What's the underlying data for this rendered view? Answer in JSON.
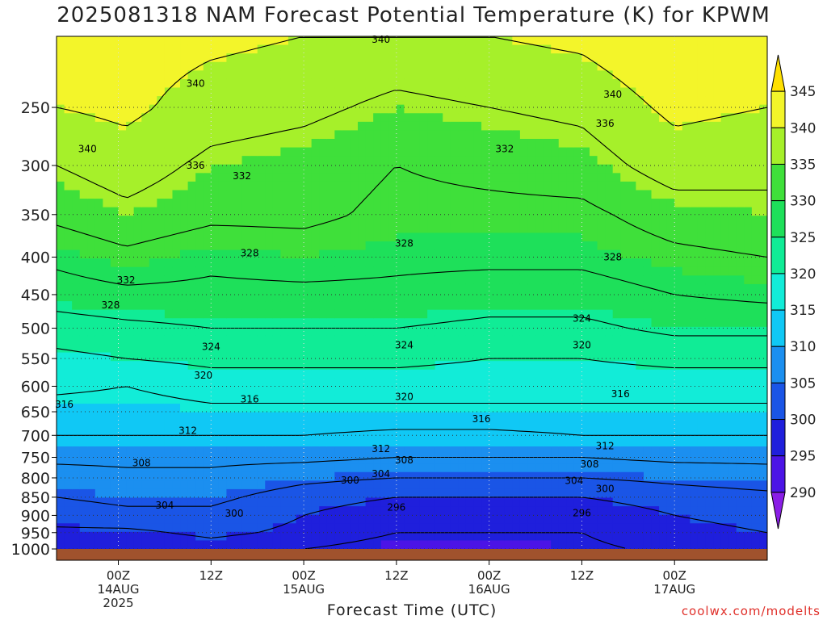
{
  "chart_data": {
    "type": "heatmap",
    "title": "2025081318 NAM Forecast Potential Temperature (K) for KPWM",
    "xlabel": "Forecast Time (UTC)",
    "ylabel": "",
    "y_axis": {
      "scale": "pressure (inverted)",
      "range": [
        1000,
        200
      ],
      "ticks": [
        1000,
        950,
        900,
        850,
        800,
        750,
        700,
        650,
        600,
        550,
        500,
        450,
        400,
        350,
        300,
        250
      ]
    },
    "x_axis": {
      "range_hours": [
        -8,
        84
      ],
      "ticks": [
        {
          "hour": 0,
          "lines": [
            "00Z",
            "14AUG",
            "2025"
          ]
        },
        {
          "hour": 12,
          "lines": [
            "12Z"
          ]
        },
        {
          "hour": 24,
          "lines": [
            "00Z",
            "15AUG"
          ]
        },
        {
          "hour": 36,
          "lines": [
            "12Z"
          ]
        },
        {
          "hour": 48,
          "lines": [
            "00Z",
            "16AUG"
          ]
        },
        {
          "hour": 60,
          "lines": [
            "12Z"
          ]
        },
        {
          "hour": 72,
          "lines": [
            "00Z",
            "17AUG"
          ]
        }
      ]
    },
    "colorbar": {
      "levels": [
        290,
        295,
        300,
        305,
        310,
        315,
        320,
        325,
        330,
        335,
        340,
        345
      ],
      "colors": [
        "#8a1ee6",
        "#4b14e6",
        "#1f1fdc",
        "#1a55e6",
        "#1b8ff0",
        "#10c8f5",
        "#12ecd8",
        "#10ec96",
        "#1ee05a",
        "#3fe03a",
        "#a6f02a",
        "#f3f52a",
        "#ffe000"
      ]
    },
    "contour_levels": [
      296,
      300,
      304,
      308,
      312,
      316,
      320,
      324,
      328,
      332,
      336,
      340
    ],
    "theta_profiles": [
      {
        "hour": -8,
        "values": [
          [
            1000,
            297
          ],
          [
            950,
            299
          ],
          [
            900,
            302
          ],
          [
            850,
            304
          ],
          [
            800,
            306
          ],
          [
            750,
            309
          ],
          [
            700,
            312
          ],
          [
            650,
            314
          ],
          [
            600,
            317
          ],
          [
            550,
            319
          ],
          [
            500,
            322
          ],
          [
            450,
            326
          ],
          [
            400,
            329
          ],
          [
            350,
            333
          ],
          [
            300,
            336
          ],
          [
            250,
            340
          ],
          [
            200,
            342
          ]
        ]
      },
      {
        "hour": 1,
        "values": [
          [
            1000,
            296
          ],
          [
            950,
            299
          ],
          [
            900,
            303
          ],
          [
            850,
            305
          ],
          [
            800,
            307
          ],
          [
            750,
            309
          ],
          [
            700,
            312
          ],
          [
            650,
            314
          ],
          [
            600,
            316
          ],
          [
            550,
            320
          ],
          [
            500,
            323
          ],
          [
            450,
            327
          ],
          [
            400,
            331
          ],
          [
            350,
            335
          ],
          [
            300,
            338
          ],
          [
            250,
            341
          ],
          [
            200,
            342
          ]
        ]
      },
      {
        "hour": 12,
        "values": [
          [
            1000,
            298
          ],
          [
            950,
            301
          ],
          [
            900,
            303
          ],
          [
            850,
            305
          ],
          [
            800,
            307
          ],
          [
            750,
            309
          ],
          [
            700,
            312
          ],
          [
            650,
            315
          ],
          [
            600,
            318
          ],
          [
            550,
            321
          ],
          [
            500,
            324
          ],
          [
            450,
            327
          ],
          [
            400,
            329
          ],
          [
            350,
            333
          ],
          [
            300,
            335
          ],
          [
            250,
            338
          ],
          [
            200,
            341
          ]
        ]
      },
      {
        "hour": 24,
        "values": [
          [
            1000,
            296
          ],
          [
            950,
            299
          ],
          [
            900,
            300
          ],
          [
            850,
            302
          ],
          [
            800,
            305
          ],
          [
            750,
            309
          ],
          [
            700,
            312
          ],
          [
            650,
            315
          ],
          [
            600,
            318
          ],
          [
            550,
            321
          ],
          [
            500,
            324
          ],
          [
            450,
            327
          ],
          [
            400,
            330
          ],
          [
            350,
            333
          ],
          [
            300,
            334
          ],
          [
            250,
            337
          ],
          [
            200,
            340
          ]
        ]
      },
      {
        "hour": 36,
        "values": [
          [
            1000,
            294
          ],
          [
            950,
            296
          ],
          [
            900,
            297
          ],
          [
            850,
            300
          ],
          [
            800,
            304
          ],
          [
            750,
            308
          ],
          [
            700,
            311
          ],
          [
            650,
            315
          ],
          [
            600,
            318
          ],
          [
            550,
            321
          ],
          [
            500,
            324
          ],
          [
            450,
            327
          ],
          [
            400,
            329
          ],
          [
            350,
            331
          ],
          [
            300,
            332
          ],
          [
            250,
            335
          ],
          [
            200,
            339
          ]
        ]
      },
      {
        "hour": 48,
        "values": [
          [
            1000,
            294
          ],
          [
            950,
            296
          ],
          [
            900,
            298
          ],
          [
            850,
            300
          ],
          [
            800,
            304
          ],
          [
            750,
            308
          ],
          [
            700,
            311
          ],
          [
            650,
            315
          ],
          [
            600,
            318
          ],
          [
            550,
            320
          ],
          [
            500,
            323
          ],
          [
            450,
            326
          ],
          [
            400,
            329
          ],
          [
            350,
            331
          ],
          [
            300,
            333
          ],
          [
            250,
            336
          ],
          [
            200,
            340
          ]
        ]
      },
      {
        "hour": 60,
        "values": [
          [
            1000,
            295
          ],
          [
            950,
            296
          ],
          [
            900,
            297
          ],
          [
            850,
            300
          ],
          [
            800,
            304
          ],
          [
            750,
            308
          ],
          [
            700,
            312
          ],
          [
            650,
            315
          ],
          [
            600,
            318
          ],
          [
            550,
            320
          ],
          [
            500,
            323
          ],
          [
            450,
            326
          ],
          [
            400,
            329
          ],
          [
            350,
            331
          ],
          [
            300,
            334
          ],
          [
            250,
            337
          ],
          [
            200,
            341
          ]
        ]
      },
      {
        "hour": 72,
        "values": [
          [
            1000,
            297
          ],
          [
            950,
            299
          ],
          [
            900,
            300
          ],
          [
            850,
            302
          ],
          [
            800,
            305
          ],
          [
            750,
            309
          ],
          [
            700,
            312
          ],
          [
            650,
            315
          ],
          [
            600,
            318
          ],
          [
            550,
            321
          ],
          [
            500,
            325
          ],
          [
            450,
            328
          ],
          [
            400,
            331
          ],
          [
            350,
            334
          ],
          [
            300,
            338
          ],
          [
            250,
            341
          ],
          [
            200,
            344
          ]
        ]
      },
      {
        "hour": 84,
        "values": [
          [
            1000,
            298
          ],
          [
            950,
            300
          ],
          [
            900,
            301
          ],
          [
            850,
            303
          ],
          [
            800,
            306
          ],
          [
            750,
            309
          ],
          [
            700,
            312
          ],
          [
            650,
            315
          ],
          [
            600,
            318
          ],
          [
            550,
            321
          ],
          [
            500,
            325
          ],
          [
            450,
            329
          ],
          [
            400,
            332
          ],
          [
            350,
            335
          ],
          [
            300,
            337
          ],
          [
            250,
            340
          ],
          [
            200,
            343
          ]
        ]
      }
    ],
    "contour_labels": [
      {
        "text": "340",
        "hour": 34,
        "p": 202
      },
      {
        "text": "340",
        "hour": 10,
        "p": 232
      },
      {
        "text": "340",
        "hour": -4,
        "p": 285
      },
      {
        "text": "340",
        "hour": 64,
        "p": 240
      },
      {
        "text": "336",
        "hour": 10,
        "p": 300
      },
      {
        "text": "336",
        "hour": 63,
        "p": 263
      },
      {
        "text": "332",
        "hour": 16,
        "p": 310
      },
      {
        "text": "332",
        "hour": 50,
        "p": 285
      },
      {
        "text": "332",
        "hour": 1,
        "p": 430
      },
      {
        "text": "328",
        "hour": 17,
        "p": 395
      },
      {
        "text": "328",
        "hour": 37,
        "p": 383
      },
      {
        "text": "328",
        "hour": 64,
        "p": 400
      },
      {
        "text": "328",
        "hour": -1,
        "p": 465
      },
      {
        "text": "324",
        "hour": 12,
        "p": 530
      },
      {
        "text": "324",
        "hour": 37,
        "p": 527
      },
      {
        "text": "324",
        "hour": 60,
        "p": 485
      },
      {
        "text": "320",
        "hour": 11,
        "p": 580
      },
      {
        "text": "320",
        "hour": 37,
        "p": 620
      },
      {
        "text": "320",
        "hour": 60,
        "p": 527
      },
      {
        "text": "316",
        "hour": -7,
        "p": 635
      },
      {
        "text": "316",
        "hour": 17,
        "p": 625
      },
      {
        "text": "316",
        "hour": 47,
        "p": 665
      },
      {
        "text": "316",
        "hour": 65,
        "p": 615
      },
      {
        "text": "312",
        "hour": 9,
        "p": 690
      },
      {
        "text": "312",
        "hour": 34,
        "p": 730
      },
      {
        "text": "312",
        "hour": 63,
        "p": 724
      },
      {
        "text": "308",
        "hour": 3,
        "p": 763
      },
      {
        "text": "308",
        "hour": 37,
        "p": 757
      },
      {
        "text": "308",
        "hour": 61,
        "p": 766
      },
      {
        "text": "304",
        "hour": 34,
        "p": 790
      },
      {
        "text": "304",
        "hour": 59,
        "p": 807
      },
      {
        "text": "304",
        "hour": 6,
        "p": 872
      },
      {
        "text": "300",
        "hour": 30,
        "p": 806
      },
      {
        "text": "300",
        "hour": 63,
        "p": 828
      },
      {
        "text": "300",
        "hour": 15,
        "p": 894
      },
      {
        "text": "296",
        "hour": 36,
        "p": 878
      },
      {
        "text": "296",
        "hour": 60,
        "p": 893
      }
    ]
  },
  "credit": "coolwx.com/modelts"
}
